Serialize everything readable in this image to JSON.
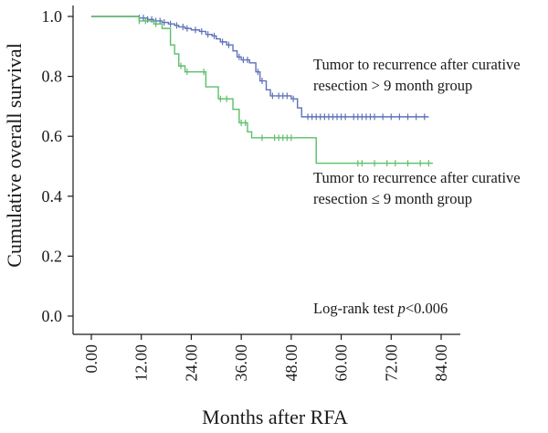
{
  "chart_data": {
    "type": "line",
    "subtype": "kaplan-meier",
    "title": "",
    "xlabel": "Months after RFA",
    "ylabel": "Cumulative overall survival",
    "xlim": [
      0,
      84
    ],
    "ylim": [
      0,
      1
    ],
    "x_ticks": [
      0,
      12,
      24,
      36,
      48,
      60,
      72,
      84
    ],
    "x_tick_labels": [
      "0.00",
      "12.00",
      "24.00",
      "36.00",
      "48.00",
      "60.00",
      "72.00",
      "84.00"
    ],
    "y_ticks": [
      0,
      0.2,
      0.4,
      0.6,
      0.8,
      1.0
    ],
    "y_tick_labels": [
      "0.0",
      "0.2",
      "0.4",
      "0.6",
      "0.8",
      "1.0"
    ],
    "grid": false,
    "annotation": {
      "prefix": "Log-rank test ",
      "italic": "p",
      "suffix": "<0.006"
    },
    "series": [
      {
        "label_lines": [
          "Tumor to recurrence after curative",
          "resection > 9 month group"
        ],
        "color": "#5f72b8",
        "steps": [
          [
            0,
            1.0
          ],
          [
            11.5,
            0.995
          ],
          [
            13.5,
            0.99
          ],
          [
            15,
            0.985
          ],
          [
            17,
            0.98
          ],
          [
            18.5,
            0.975
          ],
          [
            20,
            0.97
          ],
          [
            21,
            0.965
          ],
          [
            22.5,
            0.96
          ],
          [
            24,
            0.955
          ],
          [
            26,
            0.95
          ],
          [
            27.5,
            0.94
          ],
          [
            29,
            0.935
          ],
          [
            30,
            0.925
          ],
          [
            31,
            0.915
          ],
          [
            32.5,
            0.905
          ],
          [
            34,
            0.885
          ],
          [
            35,
            0.865
          ],
          [
            36,
            0.855
          ],
          [
            38,
            0.845
          ],
          [
            39.5,
            0.815
          ],
          [
            40.5,
            0.785
          ],
          [
            42,
            0.755
          ],
          [
            43,
            0.735
          ],
          [
            48,
            0.725
          ],
          [
            49.5,
            0.695
          ],
          [
            50.5,
            0.665
          ]
        ],
        "end_x": 81,
        "censor_x": [
          11.5,
          12.5,
          13.5,
          14.5,
          15.5,
          16.5,
          17.5,
          19,
          20.5,
          22,
          23,
          25,
          26.5,
          28,
          29.5,
          31.5,
          33,
          35.5,
          36.5,
          37.5,
          40,
          41,
          43.5,
          45,
          46,
          47,
          48.5,
          52,
          53,
          54,
          55,
          56,
          57,
          58,
          59,
          60,
          61,
          63,
          64,
          65,
          66,
          67,
          68,
          70,
          72,
          74,
          76,
          78,
          80
        ]
      },
      {
        "label_lines": [
          "Tumor to recurrence after curative",
          "resection ≤ 9 month group"
        ],
        "color": "#5bbf6a",
        "steps": [
          [
            0,
            1.0
          ],
          [
            11.5,
            0.985
          ],
          [
            15,
            0.975
          ],
          [
            17,
            0.96
          ],
          [
            19,
            0.905
          ],
          [
            20,
            0.875
          ],
          [
            21,
            0.835
          ],
          [
            22.5,
            0.815
          ],
          [
            27.5,
            0.765
          ],
          [
            30.5,
            0.725
          ],
          [
            34,
            0.69
          ],
          [
            35.5,
            0.645
          ],
          [
            37.5,
            0.615
          ],
          [
            38.5,
            0.595
          ],
          [
            54,
            0.51
          ]
        ],
        "end_x": 82,
        "censor_x": [
          11.5,
          13,
          15.5,
          21.5,
          23,
          27,
          31,
          32.5,
          36,
          37,
          41,
          44,
          45,
          46,
          47,
          48,
          64,
          65,
          68,
          71,
          73,
          76,
          79,
          81
        ]
      }
    ]
  }
}
